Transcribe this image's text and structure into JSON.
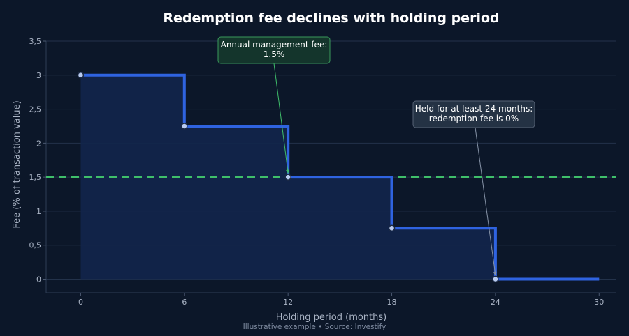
{
  "chart_data": {
    "type": "line",
    "step": "post",
    "title": "Redemption fee declines with holding period",
    "xlabel": "Holding period (months)",
    "ylabel": "Fee (% of transaction value)",
    "footer": "Illustrative example  •  Source: Investify",
    "xlim": [
      -2,
      31
    ],
    "ylim": [
      -0.2,
      3.5
    ],
    "x_ticks": [
      0,
      6,
      12,
      18,
      24,
      30
    ],
    "x_tick_labels": [
      "0",
      "6",
      "12",
      "18",
      "24",
      "30"
    ],
    "y_ticks": [
      0,
      0.5,
      1,
      1.5,
      2,
      2.5,
      3,
      3.5
    ],
    "y_tick_labels": [
      "0",
      "0,5",
      "1",
      "1,5",
      "2",
      "2,5",
      "3",
      "3,5"
    ],
    "grid": "horizontal",
    "series": [
      {
        "x": [
          0,
          6,
          12,
          18,
          24,
          30
        ],
        "y": [
          3,
          2.25,
          1.5,
          0.75,
          0,
          0
        ],
        "markers_at": [
          0,
          6,
          12,
          18,
          24
        ],
        "color": "#2f63e0",
        "fill": "#12254b"
      }
    ],
    "reference_line": {
      "y": 1.5,
      "style": "dashed",
      "color": "#3fbf6a"
    },
    "annotations": [
      {
        "lines": [
          "Annual management fee:",
          "1.5%"
        ],
        "target": [
          12,
          1.5
        ],
        "border": "#3a9a5c",
        "background": "#14352c",
        "arrow": "#3fbf6a"
      },
      {
        "lines": [
          "Held for at least 24 months:",
          "redemption fee is 0%"
        ],
        "target": [
          24,
          0
        ],
        "border": "#566275",
        "background": "#243244",
        "arrow": "#8592a6"
      }
    ]
  }
}
